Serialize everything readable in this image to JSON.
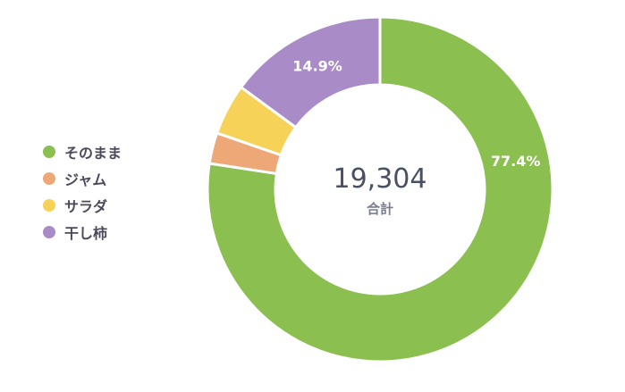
{
  "chart_data": {
    "type": "pie",
    "categories": [
      "そのまま",
      "ジャム",
      "サラダ",
      "干し柿"
    ],
    "values": [
      77.4,
      2.9,
      4.8,
      14.9
    ],
    "colors": [
      "#8bbf4f",
      "#eea777",
      "#f6d259",
      "#a98bc7"
    ],
    "value_labels": [
      "77.4%",
      "",
      "",
      "14.9%"
    ],
    "center_value": "19,304",
    "center_label": "合計",
    "legend": "left",
    "donut": true
  }
}
